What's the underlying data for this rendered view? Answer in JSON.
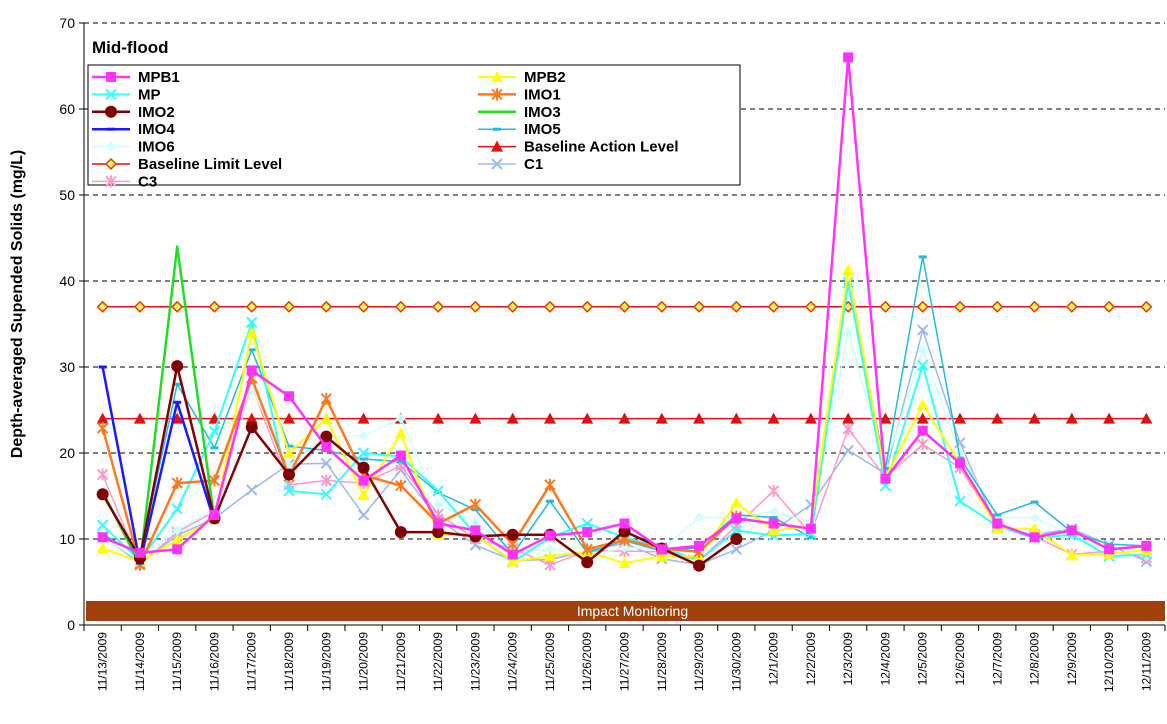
{
  "chart_data": {
    "type": "line",
    "subtitle": "Mid-flood",
    "ylabel": "Depth-averaged Supended Solids (mg/L)",
    "xlabel": "",
    "ylim": [
      0,
      70
    ],
    "yticks": [
      0,
      10,
      20,
      30,
      40,
      50,
      60,
      70
    ],
    "grid": "horizontal dashed",
    "legend_placement": "top-left",
    "band_label": "Impact Monitoring",
    "band_color": "#a0400a",
    "x": [
      "11/13/2009",
      "11/14/2009",
      "11/15/2009",
      "11/16/2009",
      "11/17/2009",
      "11/18/2009",
      "11/19/2009",
      "11/20/2009",
      "11/21/2009",
      "11/22/2009",
      "11/23/2009",
      "11/24/2009",
      "11/25/2009",
      "11/26/2009",
      "11/27/2009",
      "11/28/2009",
      "11/29/2009",
      "11/30/2009",
      "12/1/2009",
      "12/2/2009",
      "12/3/2009",
      "12/4/2009",
      "12/5/2009",
      "12/6/2009",
      "12/7/2009",
      "12/8/2009",
      "12/9/2009",
      "12/10/2009",
      "12/11/2009"
    ],
    "series": [
      {
        "name": "MPB1",
        "color": "#ff33ff",
        "marker": "square",
        "width": 2.5,
        "values": [
          10.2,
          8.4,
          8.8,
          12.8,
          29.6,
          26.6,
          20.7,
          16.8,
          19.7,
          11.8,
          11.0,
          8.2,
          10.4,
          10.8,
          11.8,
          8.8,
          9.2,
          12.4,
          11.8,
          11.2,
          66.0,
          17.0,
          22.6,
          18.8,
          11.8,
          10.2,
          11.0,
          8.8,
          9.2
        ]
      },
      {
        "name": "MPB2",
        "color": "#ffff00",
        "marker": "triangle",
        "width": 2,
        "values": [
          8.9,
          7.4,
          9.9,
          12.4,
          34.0,
          20.0,
          24.0,
          15.1,
          22.3,
          10.5,
          10.5,
          7.4,
          8.0,
          8.5,
          7.2,
          8.0,
          8.0,
          14.2,
          11.0,
          11.5,
          41.3,
          17.2,
          25.6,
          18.8,
          11.2,
          11.2,
          8.1,
          8.3,
          8.7
        ]
      },
      {
        "name": "MP",
        "color": "#33ffff",
        "marker": "x",
        "width": 2,
        "values": [
          11.6,
          7.5,
          13.5,
          22.5,
          35.2,
          15.6,
          15.2,
          20.0,
          19.6,
          15.6,
          10.5,
          7.3,
          10.2,
          11.8,
          10.2,
          9.0,
          7.5,
          11.0,
          10.4,
          10.6,
          39.8,
          16.2,
          30.2,
          14.4,
          11.5,
          10.1,
          10.5,
          8.0,
          8.2
        ]
      },
      {
        "name": "IMO1",
        "color": "#ff7a1f",
        "marker": "asterisk",
        "width": 2.5,
        "values": [
          22.9,
          7.0,
          16.5,
          16.8,
          28.7,
          17.3,
          26.3,
          17.4,
          16.2,
          11.8,
          14.0,
          9.4,
          16.3,
          8.8,
          9.9,
          8.9,
          8.5,
          12.6,
          null,
          null,
          null,
          null,
          null,
          null,
          null,
          null,
          null,
          null,
          null
        ]
      },
      {
        "name": "IMO2",
        "color": "#800000",
        "marker": "circle",
        "width": 2.5,
        "values": [
          15.2,
          7.8,
          30.1,
          12.4,
          23.0,
          17.5,
          21.9,
          18.3,
          10.8,
          10.8,
          10.3,
          10.5,
          10.5,
          7.3,
          10.9,
          8.9,
          6.9,
          10.0,
          null,
          null,
          null,
          null,
          null,
          null,
          null,
          null,
          null,
          null,
          null
        ]
      },
      {
        "name": "IMO3",
        "color": "#22dd22",
        "marker": "none",
        "width": 2.5,
        "values": [
          15.5,
          7.0,
          44.0,
          12.2,
          null,
          null,
          null,
          null,
          null,
          null,
          null,
          null,
          null,
          null,
          null,
          null,
          null,
          null,
          null,
          null,
          null,
          null,
          null,
          null,
          null,
          null,
          null,
          null,
          null
        ]
      },
      {
        "name": "IMO4",
        "color": "#1a1aff",
        "marker": "dash",
        "width": 2.5,
        "values": [
          30.0,
          7.2,
          25.9,
          12.0,
          null,
          null,
          null,
          null,
          null,
          null,
          null,
          null,
          null,
          null,
          null,
          null,
          null,
          null,
          null,
          null,
          null,
          null,
          null,
          null,
          null,
          null,
          null,
          null,
          null
        ]
      },
      {
        "name": "IMO5",
        "color": "#22bbdd",
        "marker": "dash",
        "width": 1.5,
        "values": [
          10.6,
          8.0,
          28.0,
          20.6,
          32.0,
          20.8,
          20.3,
          19.3,
          19.0,
          15.4,
          13.4,
          8.2,
          14.4,
          8.4,
          9.8,
          8.6,
          9.0,
          12.8,
          12.5,
          10.2,
          39.6,
          18.2,
          42.8,
          19.4,
          12.8,
          14.3,
          10.8,
          9.4,
          9.2
        ]
      },
      {
        "name": "IMO6",
        "color": "#ccffff",
        "marker": "diamond",
        "width": 1.5,
        "values": [
          10.2,
          7.5,
          11.0,
          13.5,
          27.5,
          18.5,
          22.0,
          22.0,
          24.0,
          14.0,
          12.0,
          8.5,
          8.8,
          8.0,
          9.0,
          8.8,
          12.5,
          12.5,
          13.2,
          12.0,
          34.0,
          18.5,
          32.0,
          20.0,
          12.5,
          12.5,
          10.5,
          8.5,
          8.0
        ]
      },
      {
        "name": "Baseline Action Level",
        "color": "#dd1111",
        "marker": "triangle",
        "width": 1.5,
        "values": [
          24,
          24,
          24,
          24,
          24,
          24,
          24,
          24,
          24,
          24,
          24,
          24,
          24,
          24,
          24,
          24,
          24,
          24,
          24,
          24,
          24,
          24,
          24,
          24,
          24,
          24,
          24,
          24,
          24
        ]
      },
      {
        "name": "Baseline Limit Level",
        "color": "#dd1111",
        "marker": "diamond-orange",
        "width": 1.5,
        "values": [
          37,
          37,
          37,
          37,
          37,
          37,
          37,
          37,
          37,
          37,
          37,
          37,
          37,
          37,
          37,
          37,
          37,
          37,
          37,
          37,
          37,
          37,
          37,
          37,
          37,
          37,
          37,
          37,
          37
        ]
      },
      {
        "name": "C1",
        "color": "#99bbee",
        "marker": "x",
        "width": 1.5,
        "values": [
          10.3,
          7.2,
          10.4,
          12.4,
          15.7,
          18.7,
          18.8,
          12.8,
          18.0,
          12.3,
          9.3,
          7.5,
          7.6,
          8.6,
          9.5,
          7.7,
          7.0,
          8.8,
          11.0,
          14.0,
          20.3,
          17.6,
          34.3,
          21.2,
          11.3,
          10.5,
          11.2,
          9.3,
          7.4
        ]
      },
      {
        "name": "C3",
        "color": "#ff99cc",
        "marker": "asterisk",
        "width": 1.5,
        "values": [
          17.5,
          7.0,
          10.8,
          13.2,
          27.8,
          16.3,
          16.8,
          16.5,
          18.5,
          12.9,
          10.0,
          8.9,
          7.0,
          8.6,
          8.6,
          8.5,
          7.5,
          11.5,
          15.6,
          10.6,
          22.8,
          17.2,
          21.0,
          18.3,
          11.4,
          10.3,
          8.2,
          8.6,
          7.8
        ]
      }
    ]
  }
}
